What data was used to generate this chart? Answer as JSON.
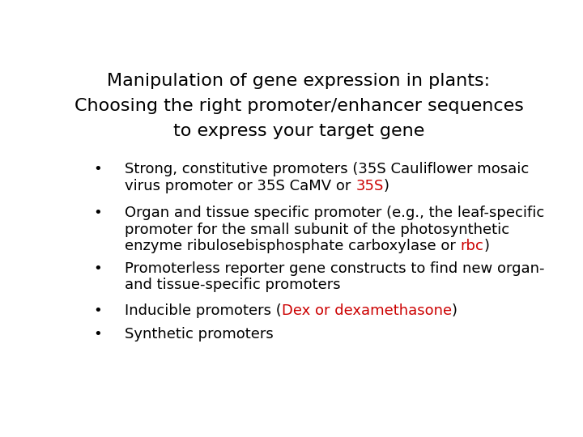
{
  "title_line1": "Manipulation of gene expression in plants:",
  "title_line2": "Choosing the right promoter/enhancer sequences",
  "title_line3": "to express your target gene",
  "title_fontsize": 16,
  "title_color": "#000000",
  "background_color": "#ffffff",
  "font_family": "DejaVu Sans",
  "bullet_fontsize": 13,
  "bullet_color": "#000000",
  "red_color": "#cc0000",
  "bullet_char": "•",
  "bullet_items": [
    [
      {
        "text": "Strong, constitutive promoters (35S Cauliflower mosaic\nvirus promoter or 35S CaMV or ",
        "color": "#000000"
      },
      {
        "text": "35S",
        "color": "#cc0000"
      },
      {
        "text": ")",
        "color": "#000000"
      }
    ],
    [
      {
        "text": "Organ and tissue specific promoter (e.g., the leaf-specific\npromoter for the small subunit of the photosynthetic\nenzyme ribulosebisphosphate carboxylase or ",
        "color": "#000000"
      },
      {
        "text": "rbc",
        "color": "#cc0000"
      },
      {
        "text": ")",
        "color": "#000000"
      }
    ],
    [
      {
        "text": "Promoterless reporter gene constructs to find new organ-\nand tissue-specific promoters",
        "color": "#000000"
      }
    ],
    [
      {
        "text": "Inducible promoters (",
        "color": "#000000"
      },
      {
        "text": "Dex or dexamethasone",
        "color": "#cc0000"
      },
      {
        "text": ")",
        "color": "#000000"
      }
    ],
    [
      {
        "text": "Synthetic promoters",
        "color": "#000000"
      }
    ]
  ]
}
